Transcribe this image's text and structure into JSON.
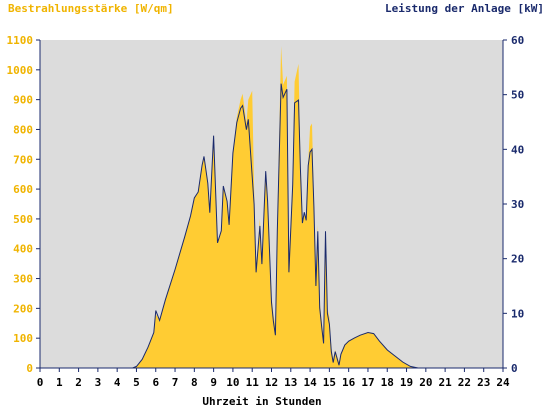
{
  "chart_data": {
    "type": "area",
    "title_left": "Bestrahlungsstärke [W/qm]",
    "title_right": "Leistung der Anlage [kW]",
    "xlabel": "Uhrzeit in Stunden",
    "x_ticks": [
      "0",
      "1",
      "2",
      "3",
      "4",
      "5",
      "6",
      "7",
      "8",
      "9",
      "10",
      "11",
      "12",
      "13",
      "14",
      "15",
      "16",
      "17",
      "18",
      "19",
      "20",
      "21",
      "22",
      "23",
      "24"
    ],
    "xlim": [
      0,
      24
    ],
    "y_left": {
      "ylim": [
        0,
        1100
      ],
      "ticks": [
        "0",
        "100",
        "200",
        "300",
        "400",
        "500",
        "600",
        "700",
        "800",
        "900",
        "1000",
        "1100"
      ]
    },
    "y_right": {
      "ylim": [
        0,
        60
      ],
      "ticks": [
        "0",
        "10",
        "20",
        "30",
        "40",
        "50",
        "60"
      ]
    },
    "grid": false,
    "colors": {
      "irradiance": "#ffcc33",
      "power": "#1a2a6c",
      "plot_bg": "#dcdcdc",
      "left_axis_text": "#f0b400",
      "right_axis_text": "#1a2a6c"
    },
    "series": [
      {
        "axis": "left",
        "x": [
          0,
          4.8,
          5.0,
          5.3,
          5.6,
          5.9,
          6.0,
          6.2,
          6.5,
          7.0,
          7.5,
          7.8,
          8.0,
          8.2,
          8.4,
          8.5,
          8.7,
          8.8,
          9.0,
          9.2,
          9.4,
          9.5,
          9.7,
          9.8,
          10.0,
          10.2,
          10.4,
          10.5,
          10.7,
          10.8,
          11.0,
          11.1,
          11.2,
          11.4,
          11.5,
          11.7,
          11.8,
          12.0,
          12.1,
          12.2,
          12.3,
          12.5,
          12.6,
          12.8,
          12.9,
          13.1,
          13.2,
          13.4,
          13.5,
          13.6,
          13.7,
          13.8,
          13.9,
          14.0,
          14.1,
          14.2,
          14.3,
          14.4,
          14.5,
          14.6,
          14.7,
          14.8,
          14.9,
          15.0,
          15.1,
          15.2,
          15.3,
          15.5,
          15.6,
          15.8,
          16.0,
          16.3,
          16.6,
          17.0,
          17.3,
          17.6,
          18.0,
          18.4,
          18.8,
          19.2,
          19.6,
          20.0,
          20.1,
          24
        ],
        "values": [
          0,
          0,
          5,
          30,
          70,
          120,
          180,
          160,
          230,
          330,
          440,
          510,
          570,
          590,
          680,
          710,
          620,
          520,
          780,
          420,
          460,
          610,
          560,
          480,
          720,
          840,
          900,
          920,
          820,
          900,
          930,
          600,
          340,
          500,
          350,
          660,
          560,
          240,
          180,
          140,
          480,
          1080,
          950,
          980,
          350,
          640,
          960,
          1020,
          700,
          490,
          520,
          500,
          690,
          810,
          820,
          560,
          290,
          480,
          220,
          160,
          100,
          460,
          200,
          170,
          70,
          30,
          60,
          20,
          50,
          80,
          90,
          100,
          110,
          120,
          115,
          90,
          60,
          40,
          20,
          5,
          0,
          0,
          0,
          0
        ]
      },
      {
        "axis": "right",
        "x": [
          0,
          4.8,
          5.0,
          5.3,
          5.6,
          5.9,
          6.0,
          6.2,
          6.5,
          7.0,
          7.5,
          7.8,
          8.0,
          8.2,
          8.4,
          8.5,
          8.7,
          8.8,
          9.0,
          9.2,
          9.4,
          9.5,
          9.7,
          9.8,
          10.0,
          10.2,
          10.4,
          10.5,
          10.7,
          10.8,
          11.0,
          11.1,
          11.2,
          11.4,
          11.5,
          11.7,
          11.8,
          12.0,
          12.1,
          12.2,
          12.3,
          12.5,
          12.6,
          12.8,
          12.9,
          13.1,
          13.2,
          13.4,
          13.5,
          13.6,
          13.7,
          13.8,
          13.9,
          14.0,
          14.1,
          14.2,
          14.3,
          14.4,
          14.5,
          14.6,
          14.7,
          14.8,
          14.9,
          15.0,
          15.1,
          15.2,
          15.3,
          15.5,
          15.6,
          15.8,
          16.0,
          16.3,
          16.6,
          17.0,
          17.3,
          17.6,
          18.0,
          18.4,
          18.8,
          19.2,
          19.6,
          20.0,
          20.1,
          24
        ],
        "values": [
          0,
          0,
          0.3,
          1.6,
          3.8,
          6.5,
          10.5,
          8.7,
          12.5,
          18.0,
          24.0,
          27.8,
          31.1,
          32.2,
          37.1,
          38.7,
          33.8,
          28.4,
          42.5,
          22.9,
          25.1,
          33.3,
          30.5,
          26.2,
          39.3,
          44.9,
          47.5,
          48.0,
          43.6,
          45.5,
          35.0,
          30.0,
          17.5,
          26.0,
          19.0,
          36.0,
          30.5,
          12.0,
          8.5,
          6.0,
          25.0,
          52.0,
          49.5,
          51.0,
          17.5,
          33.5,
          48.5,
          49.0,
          36.5,
          26.5,
          28.5,
          27.0,
          37.0,
          39.5,
          40.0,
          29.5,
          15.0,
          25.0,
          11.0,
          7.5,
          4.5,
          25.0,
          10.0,
          8.0,
          3.0,
          1.0,
          3.0,
          0.5,
          2.5,
          4.2,
          4.9,
          5.5,
          6.0,
          6.5,
          6.3,
          4.9,
          3.3,
          2.2,
          1.1,
          0.3,
          0,
          0,
          0,
          0
        ]
      }
    ]
  }
}
